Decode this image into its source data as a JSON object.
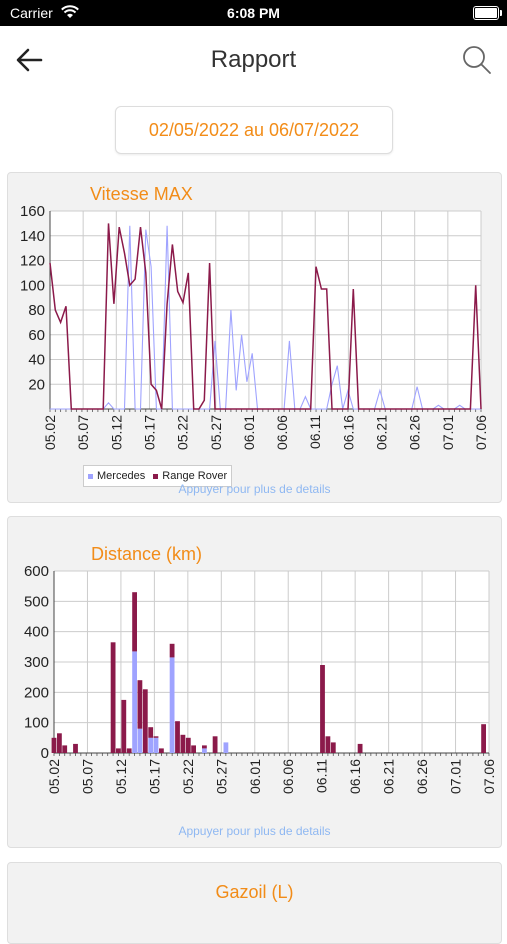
{
  "status_bar": {
    "carrier": "Carrier",
    "time": "6:08 PM"
  },
  "header": {
    "title": "Rapport",
    "back_icon": "arrow-left-icon",
    "search_icon": "search-icon"
  },
  "date_range": "02/05/2022 au 06/07/2022",
  "hint": "Appuyer pour plus de details",
  "colors": {
    "accent": "#f28c18",
    "mercedes": "#9fa3ff",
    "range_rover": "#8b1a4a",
    "hint": "#8fb8f2"
  },
  "chart_data": [
    {
      "type": "line",
      "title": "Vitesse MAX",
      "ylim": [
        0,
        160
      ],
      "yticks": [
        20,
        40,
        60,
        80,
        100,
        120,
        140,
        160
      ],
      "xtick_labels": [
        "05.02",
        "05.07",
        "05.12",
        "05.17",
        "05.22",
        "05.27",
        "06.01",
        "06.06",
        "06.11",
        "06.16",
        "06.21",
        "06.26",
        "07.01",
        "07.06"
      ],
      "series": [
        {
          "name": "Mercedes",
          "color": "#9fa3ff",
          "values": [
            0,
            0,
            0,
            0,
            0,
            0,
            0,
            0,
            0,
            0,
            0,
            5,
            0,
            0,
            0,
            148,
            0,
            0,
            145,
            115,
            0,
            0,
            148,
            0,
            0,
            0,
            0,
            0,
            0,
            0,
            0,
            55,
            0,
            0,
            80,
            15,
            60,
            22,
            45,
            0,
            0,
            0,
            0,
            0,
            0,
            55,
            0,
            0,
            10,
            0,
            0,
            0,
            0,
            20,
            35,
            0,
            15,
            0,
            0,
            0,
            0,
            0,
            15,
            0,
            0,
            0,
            0,
            0,
            0,
            18,
            0,
            0,
            0,
            3,
            0,
            0,
            0,
            3,
            0,
            0,
            0,
            0
          ]
        },
        {
          "name": "Range Rover",
          "color": "#8b1a4a",
          "values": [
            118,
            80,
            70,
            83,
            0,
            0,
            0,
            0,
            0,
            0,
            0,
            150,
            85,
            147,
            126,
            100,
            105,
            147,
            110,
            20,
            15,
            0,
            85,
            133,
            95,
            86,
            110,
            0,
            0,
            7,
            118,
            0,
            0,
            0,
            0,
            0,
            0,
            0,
            0,
            0,
            0,
            0,
            0,
            0,
            0,
            0,
            0,
            0,
            0,
            0,
            115,
            97,
            97,
            0,
            0,
            0,
            0,
            97,
            0,
            0,
            0,
            0,
            0,
            0,
            0,
            0,
            0,
            0,
            0,
            0,
            0,
            0,
            0,
            0,
            0,
            0,
            0,
            0,
            0,
            0,
            100,
            0
          ]
        }
      ],
      "legend": [
        "Mercedes",
        "Range Rover"
      ]
    },
    {
      "type": "bar",
      "title": "Distance (km)",
      "ylim": [
        0,
        600
      ],
      "yticks": [
        0,
        100,
        200,
        300,
        400,
        500,
        600
      ],
      "xtick_labels": [
        "05.02",
        "05.07",
        "05.12",
        "05.17",
        "05.22",
        "05.27",
        "06.01",
        "06.06",
        "06.11",
        "06.16",
        "06.21",
        "06.26",
        "07.01",
        "07.06"
      ],
      "series": [
        {
          "name": "Mercedes",
          "color": "#9fa3ff",
          "values": [
            0,
            0,
            0,
            0,
            0,
            0,
            0,
            0,
            0,
            0,
            0,
            0,
            0,
            0,
            0,
            335,
            80,
            0,
            50,
            50,
            0,
            0,
            315,
            0,
            0,
            0,
            0,
            0,
            15,
            0,
            0,
            0,
            35,
            0,
            0,
            0,
            0,
            0,
            0,
            0,
            0,
            0,
            0,
            0,
            0,
            0,
            0,
            0,
            0,
            0,
            0,
            0,
            0,
            0,
            0,
            0,
            0,
            0,
            0,
            0,
            0,
            0,
            0,
            0,
            0,
            0,
            0,
            0,
            0,
            0,
            0,
            0,
            0,
            0,
            0,
            0,
            0,
            0,
            0,
            0,
            0,
            0
          ]
        },
        {
          "name": "Range Rover",
          "color": "#8b1a4a",
          "values": [
            50,
            65,
            25,
            0,
            30,
            0,
            0,
            0,
            0,
            0,
            0,
            365,
            15,
            175,
            15,
            195,
            160,
            210,
            35,
            5,
            15,
            0,
            45,
            105,
            60,
            50,
            25,
            0,
            10,
            0,
            55,
            0,
            0,
            0,
            0,
            0,
            0,
            0,
            0,
            0,
            0,
            0,
            0,
            0,
            0,
            0,
            0,
            0,
            0,
            0,
            290,
            55,
            35,
            0,
            0,
            0,
            0,
            30,
            0,
            0,
            0,
            0,
            0,
            0,
            0,
            0,
            0,
            0,
            0,
            0,
            0,
            0,
            0,
            0,
            0,
            0,
            0,
            0,
            0,
            0,
            95,
            0
          ]
        }
      ]
    },
    {
      "type": "bar",
      "title": "Gazoil (L)"
    }
  ]
}
